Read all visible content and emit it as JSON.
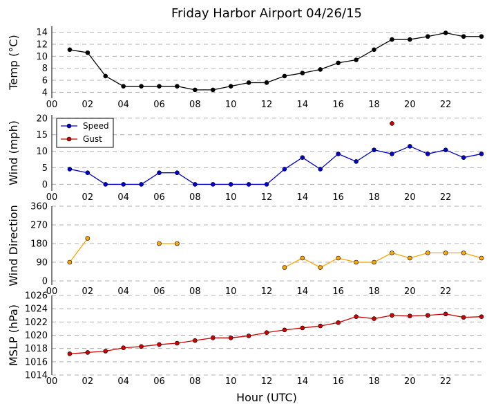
{
  "title": "Friday Harbor Airport 04/26/15",
  "xlabel": "Hour (UTC)",
  "x_ticks": [
    "00",
    "02",
    "04",
    "06",
    "08",
    "10",
    "12",
    "14",
    "16",
    "18",
    "20",
    "22"
  ],
  "chart_data": [
    {
      "type": "line",
      "ylabel": "Temp ($^\\circ$C)",
      "ylabel_display": "Temp (°C)",
      "ylim": [
        3,
        15
      ],
      "yticks": [
        4,
        6,
        8,
        10,
        12,
        14
      ],
      "xlim": [
        0,
        24
      ],
      "series": [
        {
          "color": "#000000",
          "points": [
            [
              1,
              11.1
            ],
            [
              2,
              10.6
            ],
            [
              3,
              6.7
            ],
            [
              4,
              5.0
            ],
            [
              5,
              5.0
            ],
            [
              6,
              5.0
            ],
            [
              7,
              5.0
            ],
            [
              8,
              4.4
            ],
            [
              9,
              4.4
            ],
            [
              10,
              5.0
            ],
            [
              11,
              5.6
            ],
            [
              12,
              5.6
            ],
            [
              13,
              6.7
            ],
            [
              14,
              7.2
            ],
            [
              15,
              7.8
            ],
            [
              16,
              8.9
            ],
            [
              17,
              9.4
            ],
            [
              18,
              11.1
            ],
            [
              19,
              12.8
            ],
            [
              20,
              12.8
            ],
            [
              21,
              13.3
            ],
            [
              22,
              13.9
            ],
            [
              23,
              13.3
            ],
            [
              24,
              13.3
            ]
          ]
        }
      ]
    },
    {
      "type": "line",
      "ylabel": "Wind (mph)",
      "ylim": [
        -2,
        21
      ],
      "yticks": [
        0,
        5,
        10,
        15,
        20
      ],
      "xlim": [
        0,
        24
      ],
      "legend": "top-left",
      "series": [
        {
          "name": "Speed",
          "color": "#0000cc",
          "points": [
            [
              1,
              4.6
            ],
            [
              2,
              3.5
            ],
            [
              3,
              0
            ],
            [
              4,
              0
            ],
            [
              5,
              0
            ],
            [
              6,
              3.5
            ],
            [
              7,
              3.5
            ],
            [
              8,
              0
            ],
            [
              9,
              0
            ],
            [
              10,
              0
            ],
            [
              11,
              0
            ],
            [
              12,
              0
            ],
            [
              13,
              4.6
            ],
            [
              14,
              8.1
            ],
            [
              15,
              4.6
            ],
            [
              16,
              9.2
            ],
            [
              17,
              6.9
            ],
            [
              18,
              10.4
            ],
            [
              19,
              9.2
            ],
            [
              20,
              11.5
            ],
            [
              21,
              9.2
            ],
            [
              22,
              10.4
            ],
            [
              23,
              8.1
            ],
            [
              24,
              9.2
            ]
          ]
        },
        {
          "name": "Gust",
          "color": "#cc0000",
          "points": [
            [
              19,
              18.4
            ]
          ]
        }
      ]
    },
    {
      "type": "line",
      "ylabel": "Wind Direction",
      "ylim": [
        -20,
        360
      ],
      "yticks": [
        0,
        90,
        180,
        270,
        360
      ],
      "xlim": [
        0,
        24
      ],
      "series": [
        {
          "color": "#ffa500",
          "segments": [
            [
              [
                1,
                90
              ],
              [
                2,
                205
              ]
            ],
            [
              [
                6,
                180
              ],
              [
                7,
                180
              ]
            ],
            [
              [
                13,
                65
              ],
              [
                14,
                110
              ],
              [
                15,
                65
              ],
              [
                16,
                110
              ],
              [
                17,
                90
              ],
              [
                18,
                90
              ],
              [
                19,
                135
              ],
              [
                20,
                110
              ],
              [
                21,
                135
              ],
              [
                22,
                135
              ],
              [
                23,
                135
              ],
              [
                24,
                110
              ]
            ]
          ]
        }
      ]
    },
    {
      "type": "line",
      "ylabel": "MSLP (hPa)",
      "ylim": [
        1014,
        1026
      ],
      "yticks": [
        1014,
        1016,
        1018,
        1020,
        1022,
        1024,
        1026
      ],
      "xlim": [
        0,
        24
      ],
      "series": [
        {
          "color": "#cc0000",
          "points": [
            [
              1,
              1017.2
            ],
            [
              2,
              1017.4
            ],
            [
              3,
              1017.6
            ],
            [
              4,
              1018.1
            ],
            [
              5,
              1018.3
            ],
            [
              6,
              1018.6
            ],
            [
              7,
              1018.8
            ],
            [
              8,
              1019.2
            ],
            [
              9,
              1019.6
            ],
            [
              10,
              1019.6
            ],
            [
              11,
              1019.9
            ],
            [
              12,
              1020.4
            ],
            [
              13,
              1020.8
            ],
            [
              14,
              1021.1
            ],
            [
              15,
              1021.4
            ],
            [
              16,
              1021.9
            ],
            [
              17,
              1022.8
            ],
            [
              18,
              1022.5
            ],
            [
              19,
              1023.0
            ],
            [
              20,
              1022.9
            ],
            [
              21,
              1023.0
            ],
            [
              22,
              1023.2
            ],
            [
              23,
              1022.7
            ],
            [
              24,
              1022.8
            ]
          ]
        }
      ]
    }
  ]
}
